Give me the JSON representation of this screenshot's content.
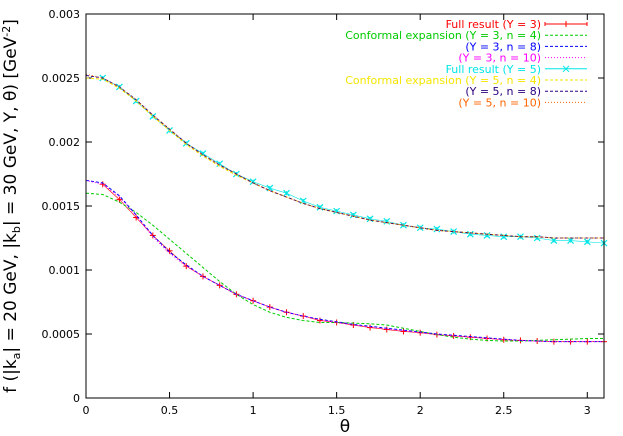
{
  "chart_data": {
    "type": "line",
    "title": "",
    "xlabel": "θ",
    "ylabel": "f (|k_a| = 20 GeV, |k_b| = 30 GeV, Y, θ) [GeV^-2]",
    "ylabel_parts": {
      "main": "f (|k",
      "sub_a": "a",
      "mid": "| = 20 GeV, |k",
      "sub_b": "b",
      "tail": "| = 30 GeV, Y, θ) [GeV",
      "sup": "-2",
      "close": "]"
    },
    "xlim": [
      0,
      3.1
    ],
    "ylim": [
      0,
      0.003
    ],
    "xticks": [
      0,
      0.5,
      1,
      1.5,
      2,
      2.5,
      3
    ],
    "xtick_labels": [
      "0",
      "0.5",
      "1",
      "1.5",
      "2",
      "2.5",
      "3"
    ],
    "yticks": [
      0,
      0.0005,
      0.001,
      0.0015,
      0.002,
      0.0025,
      0.003
    ],
    "ytick_labels": [
      "0",
      "0.0005",
      "0.001",
      "0.0015",
      "0.002",
      "0.0025",
      "0.003"
    ],
    "legend_position": "top-right",
    "series": [
      {
        "name": "Full result (Y =  3)",
        "color": "#ff0000",
        "style": "points-error",
        "x": [
          0.1,
          0.2,
          0.3,
          0.4,
          0.5,
          0.6,
          0.7,
          0.8,
          0.9,
          1.0,
          1.1,
          1.2,
          1.3,
          1.4,
          1.5,
          1.6,
          1.7,
          1.8,
          1.9,
          2.0,
          2.1,
          2.2,
          2.3,
          2.4,
          2.5,
          2.6,
          2.7,
          2.8,
          2.9,
          3.0,
          3.1
        ],
        "y": [
          0.00167,
          0.00155,
          0.00141,
          0.00127,
          0.00115,
          0.00103,
          0.00095,
          0.00088,
          0.00081,
          0.00076,
          0.00071,
          0.00067,
          0.00064,
          0.000605,
          0.00059,
          0.00057,
          0.00055,
          0.000535,
          0.00052,
          0.00051,
          0.000495,
          0.000485,
          0.000475,
          0.000465,
          0.000455,
          0.00045,
          0.000445,
          0.00044,
          0.00044,
          0.00044,
          0.00044
        ]
      },
      {
        "name": "Conformal expansion (Y =  3, n =  4)",
        "color": "#00cc00",
        "style": "dashed",
        "x": [
          0,
          0.1,
          0.2,
          0.3,
          0.4,
          0.5,
          0.6,
          0.7,
          0.8,
          0.9,
          1.0,
          1.1,
          1.2,
          1.3,
          1.4,
          1.5,
          1.6,
          1.7,
          1.8,
          1.9,
          2.0,
          2.1,
          2.2,
          2.3,
          2.4,
          2.5,
          2.6,
          2.7,
          2.8,
          2.9,
          3.0,
          3.1
        ],
        "y": [
          0.0016,
          0.00159,
          0.00153,
          0.00145,
          0.00135,
          0.00124,
          0.00113,
          0.00102,
          0.00091,
          0.00081,
          0.00073,
          0.00067,
          0.00063,
          0.000605,
          0.00059,
          0.00059,
          0.000585,
          0.00058,
          0.00057,
          0.000545,
          0.00052,
          0.000495,
          0.000475,
          0.00046,
          0.00045,
          0.000445,
          0.000445,
          0.00045,
          0.000455,
          0.00046,
          0.000465,
          0.000465
        ]
      },
      {
        "name": "(Y =  3, n =  8)",
        "color": "#0000ff",
        "style": "dashed",
        "x": [
          0,
          0.1,
          0.2,
          0.3,
          0.4,
          0.5,
          0.6,
          0.7,
          0.8,
          0.9,
          1.0,
          1.1,
          1.2,
          1.3,
          1.4,
          1.5,
          1.6,
          1.7,
          1.8,
          1.9,
          2.0,
          2.1,
          2.2,
          2.3,
          2.4,
          2.5,
          2.6,
          2.7,
          2.8,
          2.9,
          3.0,
          3.1
        ],
        "y": [
          0.0017,
          0.00168,
          0.00158,
          0.00143,
          0.00127,
          0.00114,
          0.00104,
          0.00095,
          0.00088,
          0.00081,
          0.00076,
          0.00071,
          0.00067,
          0.00064,
          0.000615,
          0.000595,
          0.000575,
          0.00056,
          0.000545,
          0.00053,
          0.000515,
          0.0005,
          0.00049,
          0.00048,
          0.00047,
          0.00046,
          0.00045,
          0.000445,
          0.00044,
          0.00044,
          0.00044,
          0.00044
        ]
      },
      {
        "name": "(Y =  3, n = 10)",
        "color": "#ff00ff",
        "style": "dotted",
        "x": [
          0,
          0.1,
          0.2,
          0.3,
          0.4,
          0.5,
          0.6,
          0.7,
          0.8,
          0.9,
          1.0,
          1.1,
          1.2,
          1.3,
          1.4,
          1.5,
          1.6,
          1.7,
          1.8,
          1.9,
          2.0,
          2.1,
          2.2,
          2.3,
          2.4,
          2.5,
          2.6,
          2.7,
          2.8,
          2.9,
          3.0,
          3.1
        ],
        "y": [
          0.0017,
          0.00167,
          0.00157,
          0.00142,
          0.00126,
          0.00113,
          0.00103,
          0.00095,
          0.00088,
          0.00081,
          0.00076,
          0.00071,
          0.00067,
          0.00064,
          0.00061,
          0.00059,
          0.00057,
          0.000555,
          0.00054,
          0.000525,
          0.00051,
          0.000497,
          0.000485,
          0.000475,
          0.000465,
          0.000457,
          0.00045,
          0.000445,
          0.00044,
          0.00044,
          0.00044,
          0.00044
        ]
      },
      {
        "name": "Full result (Y =  5)",
        "color": "#00e5e5",
        "style": "points-cross",
        "x": [
          0.1,
          0.2,
          0.3,
          0.4,
          0.5,
          0.6,
          0.7,
          0.8,
          0.9,
          1.0,
          1.1,
          1.2,
          1.3,
          1.4,
          1.5,
          1.6,
          1.7,
          1.8,
          1.9,
          2.0,
          2.1,
          2.2,
          2.3,
          2.4,
          2.5,
          2.6,
          2.7,
          2.8,
          2.9,
          3.0,
          3.1
        ],
        "y": [
          0.0025,
          0.00243,
          0.00232,
          0.0022,
          0.00209,
          0.00199,
          0.00191,
          0.00183,
          0.00175,
          0.00169,
          0.00164,
          0.0016,
          0.00154,
          0.00149,
          0.00146,
          0.00143,
          0.0014,
          0.00138,
          0.00135,
          0.00133,
          0.00132,
          0.0013,
          0.00128,
          0.00127,
          0.00126,
          0.00126,
          0.00125,
          0.00123,
          0.00123,
          0.00122,
          0.00121
        ]
      },
      {
        "name": "Conformal expansion (Y =  5, n =  4)",
        "color": "#f5e600",
        "style": "dashed",
        "x": [
          0,
          0.1,
          0.2,
          0.3,
          0.4,
          0.5,
          0.6,
          0.7,
          0.8,
          0.9,
          1.0,
          1.1,
          1.2,
          1.3,
          1.4,
          1.5,
          1.6,
          1.7,
          1.8,
          1.9,
          2.0,
          2.1,
          2.2,
          2.3,
          2.4,
          2.5,
          2.6,
          2.7,
          2.8,
          2.9,
          3.0,
          3.1
        ],
        "y": [
          0.0025,
          0.00249,
          0.00242,
          0.00232,
          0.0022,
          0.00209,
          0.00198,
          0.00189,
          0.00181,
          0.00174,
          0.00168,
          0.00162,
          0.00157,
          0.00152,
          0.00148,
          0.00145,
          0.00142,
          0.00139,
          0.00137,
          0.00135,
          0.00133,
          0.00131,
          0.0013,
          0.00129,
          0.00128,
          0.00127,
          0.00126,
          0.00126,
          0.00125,
          0.00125,
          0.00125,
          0.00125
        ]
      },
      {
        "name": "(Y =  5, n =  8)",
        "color": "#2a0080",
        "style": "dashed",
        "x": [
          0,
          0.1,
          0.2,
          0.3,
          0.4,
          0.5,
          0.6,
          0.7,
          0.8,
          0.9,
          1.0,
          1.1,
          1.2,
          1.3,
          1.4,
          1.5,
          1.6,
          1.7,
          1.8,
          1.9,
          2.0,
          2.1,
          2.2,
          2.3,
          2.4,
          2.5,
          2.6,
          2.7,
          2.8,
          2.9,
          3.0,
          3.1
        ],
        "y": [
          0.00252,
          0.0025,
          0.00243,
          0.00233,
          0.00221,
          0.0021,
          0.00199,
          0.0019,
          0.00182,
          0.00175,
          0.00168,
          0.00162,
          0.00157,
          0.00152,
          0.00148,
          0.00145,
          0.00142,
          0.00139,
          0.00137,
          0.00135,
          0.00133,
          0.00131,
          0.0013,
          0.00129,
          0.00128,
          0.00127,
          0.00126,
          0.00126,
          0.00125,
          0.00125,
          0.00125,
          0.00125
        ]
      },
      {
        "name": "(Y =  5, n = 10)",
        "color": "#ff6600",
        "style": "dotted",
        "x": [
          0,
          0.1,
          0.2,
          0.3,
          0.4,
          0.5,
          0.6,
          0.7,
          0.8,
          0.9,
          1.0,
          1.1,
          1.2,
          1.3,
          1.4,
          1.5,
          1.6,
          1.7,
          1.8,
          1.9,
          2.0,
          2.1,
          2.2,
          2.3,
          2.4,
          2.5,
          2.6,
          2.7,
          2.8,
          2.9,
          3.0,
          3.1
        ],
        "y": [
          0.00253,
          0.0025,
          0.00243,
          0.00233,
          0.00221,
          0.0021,
          0.00199,
          0.0019,
          0.00182,
          0.00175,
          0.00168,
          0.00162,
          0.00157,
          0.00152,
          0.00148,
          0.00145,
          0.00142,
          0.00139,
          0.00137,
          0.00135,
          0.00133,
          0.00131,
          0.0013,
          0.00129,
          0.00128,
          0.00127,
          0.00126,
          0.00126,
          0.00125,
          0.00125,
          0.00125,
          0.00125
        ]
      }
    ]
  }
}
